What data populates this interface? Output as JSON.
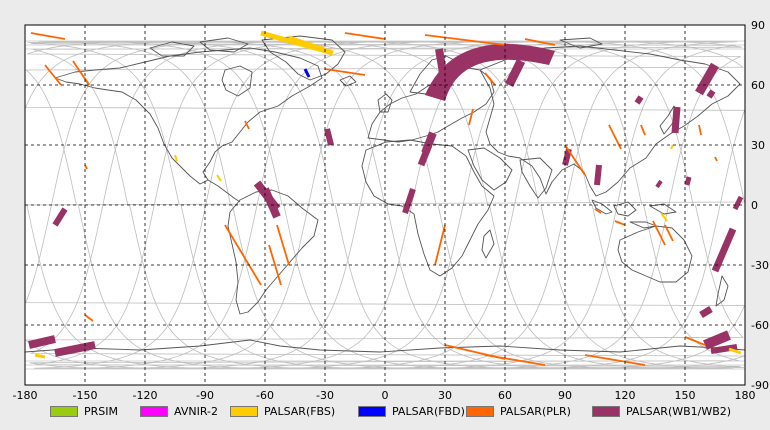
{
  "map": {
    "x_ticks": [
      "-180",
      "-150",
      "-120",
      "-90",
      "-60",
      "-30",
      "0",
      "30",
      "60",
      "90",
      "120",
      "150",
      "180"
    ],
    "y_ticks": [
      "90",
      "60",
      "30",
      "0",
      "-30",
      "-60",
      "-90"
    ]
  },
  "colors": {
    "ocean": "#ffffff",
    "coast": "#555555",
    "orbit_track": "#bfbfbf",
    "grid": "#000000",
    "frame": "#000000"
  },
  "legend": [
    {
      "label": "PRSIM",
      "color": "#99cc11",
      "icon": "legend-swatch"
    },
    {
      "label": "AVNIR-2",
      "color": "#ff00ff",
      "icon": "legend-swatch"
    },
    {
      "label": "PALSAR(FBS)",
      "color": "#ffcc00",
      "icon": "legend-swatch"
    },
    {
      "label": "PALSAR(FBD)",
      "color": "#0000ff",
      "icon": "legend-swatch"
    },
    {
      "label": "PALSAR(PLR)",
      "color": "#ff6600",
      "icon": "legend-swatch"
    },
    {
      "label": "PALSAR(WB1/WB2)",
      "color": "#993366",
      "icon": "legend-swatch"
    }
  ]
}
